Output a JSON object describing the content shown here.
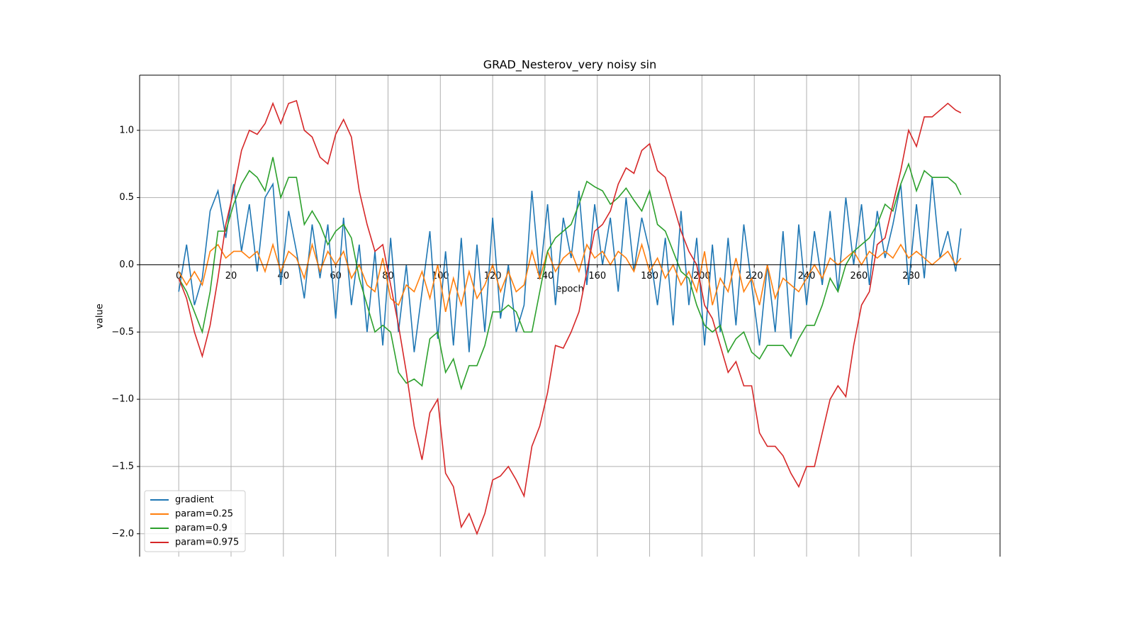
{
  "chart_data": {
    "type": "line",
    "title": "GRAD_Nesterov_very noisy sin",
    "x_label": "epoch",
    "y_label": "value",
    "x": [
      0,
      3,
      6,
      9,
      12,
      15,
      18,
      21,
      24,
      27,
      30,
      33,
      36,
      39,
      42,
      45,
      48,
      51,
      54,
      57,
      60,
      63,
      66,
      69,
      72,
      75,
      78,
      81,
      84,
      87,
      90,
      93,
      96,
      99,
      102,
      105,
      108,
      111,
      114,
      117,
      120,
      123,
      126,
      129,
      132,
      135,
      138,
      141,
      144,
      147,
      150,
      153,
      156,
      159,
      162,
      165,
      168,
      171,
      174,
      177,
      180,
      183,
      186,
      189,
      192,
      195,
      198,
      201,
      204,
      207,
      210,
      213,
      216,
      219,
      222,
      225,
      228,
      231,
      234,
      237,
      240,
      243,
      246,
      249,
      252,
      255,
      258,
      261,
      264,
      267,
      270,
      273,
      276,
      279,
      282,
      285,
      288,
      291,
      294,
      297,
      299
    ],
    "series": [
      {
        "name": "gradient",
        "color": "#1f77b4",
        "values": [
          -0.2,
          0.15,
          -0.3,
          -0.1,
          0.4,
          0.55,
          0.2,
          0.6,
          0.1,
          0.45,
          -0.05,
          0.5,
          0.6,
          -0.15,
          0.4,
          0.1,
          -0.25,
          0.3,
          -0.1,
          0.3,
          -0.4,
          0.35,
          -0.3,
          0.15,
          -0.5,
          0.1,
          -0.6,
          0.2,
          -0.5,
          0.0,
          -0.65,
          -0.2,
          0.25,
          -0.55,
          0.1,
          -0.6,
          0.2,
          -0.65,
          0.15,
          -0.5,
          0.35,
          -0.4,
          0.0,
          -0.5,
          -0.3,
          0.55,
          -0.1,
          0.45,
          -0.3,
          0.35,
          0.05,
          0.55,
          -0.15,
          0.45,
          0.0,
          0.35,
          -0.2,
          0.5,
          -0.05,
          0.35,
          0.1,
          -0.3,
          0.2,
          -0.45,
          0.4,
          -0.3,
          0.2,
          -0.6,
          0.15,
          -0.5,
          0.2,
          -0.45,
          0.3,
          -0.15,
          -0.6,
          0.0,
          -0.5,
          0.25,
          -0.55,
          0.3,
          -0.3,
          0.25,
          -0.15,
          0.4,
          -0.2,
          0.5,
          0.0,
          0.45,
          -0.15,
          0.4,
          0.05,
          0.3,
          0.6,
          -0.15,
          0.45,
          -0.1,
          0.65,
          0.05,
          0.25,
          -0.05,
          0.27
        ]
      },
      {
        "name": "param=0.25",
        "color": "#ff7f0e",
        "values": [
          -0.05,
          -0.15,
          -0.05,
          -0.15,
          0.1,
          0.15,
          0.05,
          0.1,
          0.1,
          0.05,
          0.1,
          -0.05,
          0.15,
          -0.05,
          0.1,
          0.05,
          -0.1,
          0.15,
          -0.05,
          0.1,
          0.0,
          0.1,
          -0.1,
          0.0,
          -0.15,
          -0.2,
          0.05,
          -0.25,
          -0.3,
          -0.15,
          -0.2,
          -0.05,
          -0.25,
          0.0,
          -0.35,
          -0.1,
          -0.3,
          -0.05,
          -0.25,
          -0.15,
          0.0,
          -0.2,
          -0.05,
          -0.2,
          -0.15,
          0.1,
          -0.1,
          0.1,
          -0.05,
          0.05,
          0.1,
          -0.05,
          0.15,
          0.05,
          0.1,
          0.0,
          0.1,
          0.05,
          -0.05,
          0.15,
          -0.05,
          0.05,
          -0.1,
          0.0,
          -0.15,
          -0.05,
          -0.2,
          0.1,
          -0.3,
          -0.1,
          -0.2,
          0.05,
          -0.2,
          -0.1,
          -0.3,
          0.0,
          -0.25,
          -0.1,
          -0.15,
          -0.2,
          -0.1,
          0.0,
          -0.1,
          0.05,
          0.0,
          0.05,
          0.1,
          0.0,
          0.1,
          0.05,
          0.1,
          0.05,
          0.15,
          0.05,
          0.1,
          0.05,
          0.0,
          0.05,
          0.1,
          0.0,
          0.05
        ]
      },
      {
        "name": "param=0.9",
        "color": "#2ca02c",
        "values": [
          -0.1,
          -0.2,
          -0.35,
          -0.5,
          -0.2,
          0.25,
          0.25,
          0.45,
          0.6,
          0.7,
          0.65,
          0.55,
          0.8,
          0.5,
          0.65,
          0.65,
          0.3,
          0.4,
          0.3,
          0.15,
          0.25,
          0.3,
          0.2,
          -0.1,
          -0.3,
          -0.5,
          -0.45,
          -0.5,
          -0.8,
          -0.88,
          -0.85,
          -0.9,
          -0.55,
          -0.5,
          -0.8,
          -0.7,
          -0.92,
          -0.75,
          -0.75,
          -0.6,
          -0.35,
          -0.35,
          -0.3,
          -0.35,
          -0.5,
          -0.5,
          -0.2,
          0.1,
          0.2,
          0.25,
          0.3,
          0.45,
          0.62,
          0.58,
          0.55,
          0.45,
          0.5,
          0.57,
          0.48,
          0.4,
          0.55,
          0.3,
          0.25,
          0.1,
          -0.05,
          -0.1,
          -0.3,
          -0.45,
          -0.5,
          -0.45,
          -0.65,
          -0.55,
          -0.5,
          -0.65,
          -0.7,
          -0.6,
          -0.6,
          -0.6,
          -0.68,
          -0.55,
          -0.45,
          -0.45,
          -0.3,
          -0.1,
          -0.2,
          0.0,
          0.1,
          0.15,
          0.2,
          0.3,
          0.45,
          0.4,
          0.6,
          0.75,
          0.55,
          0.7,
          0.65,
          0.65,
          0.65,
          0.6,
          0.52
        ]
      },
      {
        "name": "param=0.975",
        "color": "#d62728",
        "values": [
          -0.1,
          -0.25,
          -0.5,
          -0.68,
          -0.45,
          -0.1,
          0.3,
          0.55,
          0.85,
          1.0,
          0.97,
          1.05,
          1.2,
          1.05,
          1.2,
          1.22,
          1.0,
          0.95,
          0.8,
          0.75,
          0.97,
          1.08,
          0.95,
          0.55,
          0.3,
          0.1,
          0.15,
          -0.15,
          -0.45,
          -0.8,
          -1.2,
          -1.45,
          -1.1,
          -1.0,
          -1.55,
          -1.65,
          -1.95,
          -1.85,
          -2.0,
          -1.85,
          -1.6,
          -1.57,
          -1.5,
          -1.6,
          -1.72,
          -1.35,
          -1.2,
          -0.95,
          -0.6,
          -0.62,
          -0.5,
          -0.35,
          -0.05,
          0.25,
          0.3,
          0.4,
          0.6,
          0.72,
          0.68,
          0.85,
          0.9,
          0.7,
          0.65,
          0.45,
          0.25,
          0.1,
          0.0,
          -0.3,
          -0.4,
          -0.6,
          -0.8,
          -0.72,
          -0.9,
          -0.9,
          -1.25,
          -1.35,
          -1.35,
          -1.42,
          -1.55,
          -1.65,
          -1.5,
          -1.5,
          -1.25,
          -1.0,
          -0.9,
          -0.98,
          -0.6,
          -0.3,
          -0.2,
          0.15,
          0.2,
          0.45,
          0.7,
          1.0,
          0.88,
          1.1,
          1.1,
          1.15,
          1.2,
          1.15,
          1.13
        ]
      }
    ],
    "xlim": [
      -14.95,
      313.95
    ],
    "ylim": [
      -2.17,
      1.41
    ],
    "xticks": [
      0,
      20,
      40,
      60,
      80,
      100,
      120,
      140,
      160,
      180,
      200,
      220,
      240,
      260,
      280
    ],
    "yticks": [
      {
        "value": -2.0,
        "label": "−2.0"
      },
      {
        "value": -1.5,
        "label": "−1.5"
      },
      {
        "value": -1.0,
        "label": "−1.0"
      },
      {
        "value": -0.5,
        "label": "−0.5"
      },
      {
        "value": 0.0,
        "label": "0.0"
      },
      {
        "value": 0.5,
        "label": "0.5"
      },
      {
        "value": 1.0,
        "label": "1.0"
      }
    ],
    "grid": true,
    "legend": "lower left"
  }
}
